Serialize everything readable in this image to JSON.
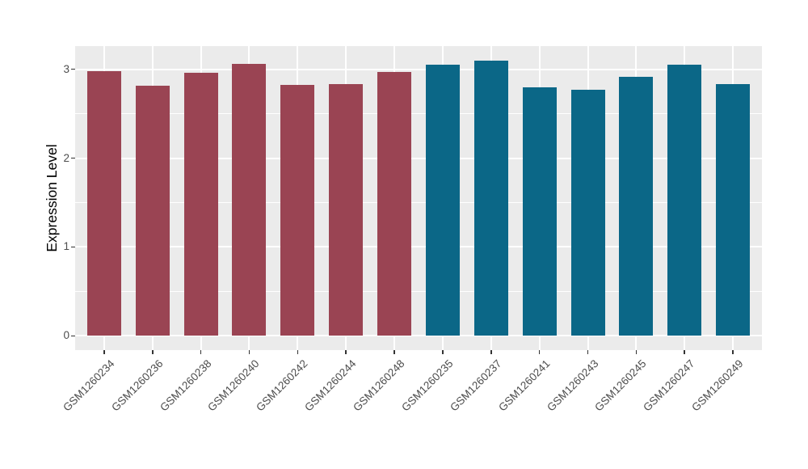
{
  "chart_data": {
    "type": "bar",
    "title": "",
    "xlabel": "",
    "ylabel": "Expression Level",
    "categories": [
      "GSM1260234",
      "GSM1260236",
      "GSM1260238",
      "GSM1260240",
      "GSM1260242",
      "GSM1260244",
      "GSM1260248",
      "GSM1260235",
      "GSM1260237",
      "GSM1260241",
      "GSM1260243",
      "GSM1260245",
      "GSM1260247",
      "GSM1260249"
    ],
    "values": [
      2.98,
      2.81,
      2.96,
      3.06,
      2.82,
      2.83,
      2.97,
      3.05,
      3.1,
      2.8,
      2.77,
      2.91,
      3.05,
      2.83
    ],
    "bar_colors": [
      "#9A4453",
      "#9A4453",
      "#9A4453",
      "#9A4453",
      "#9A4453",
      "#9A4453",
      "#9A4453",
      "#0B6787",
      "#0B6787",
      "#0B6787",
      "#0B6787",
      "#0B6787",
      "#0B6787",
      "#0B6787"
    ],
    "group_colors": {
      "maroon_group": "#9A4453",
      "teal_group": "#0B6787"
    },
    "yticks": [
      0,
      1,
      2,
      3
    ],
    "ylim": [
      -0.16,
      3.26
    ],
    "grid": "major-and-minor",
    "legend_position": "none",
    "style_colors": {
      "panel_background": "#EBEBEB",
      "gridline": "#FFFFFF",
      "tick_mark": "#333333",
      "tick_label": "#4D4D4D",
      "axis_title": "#000000"
    }
  }
}
